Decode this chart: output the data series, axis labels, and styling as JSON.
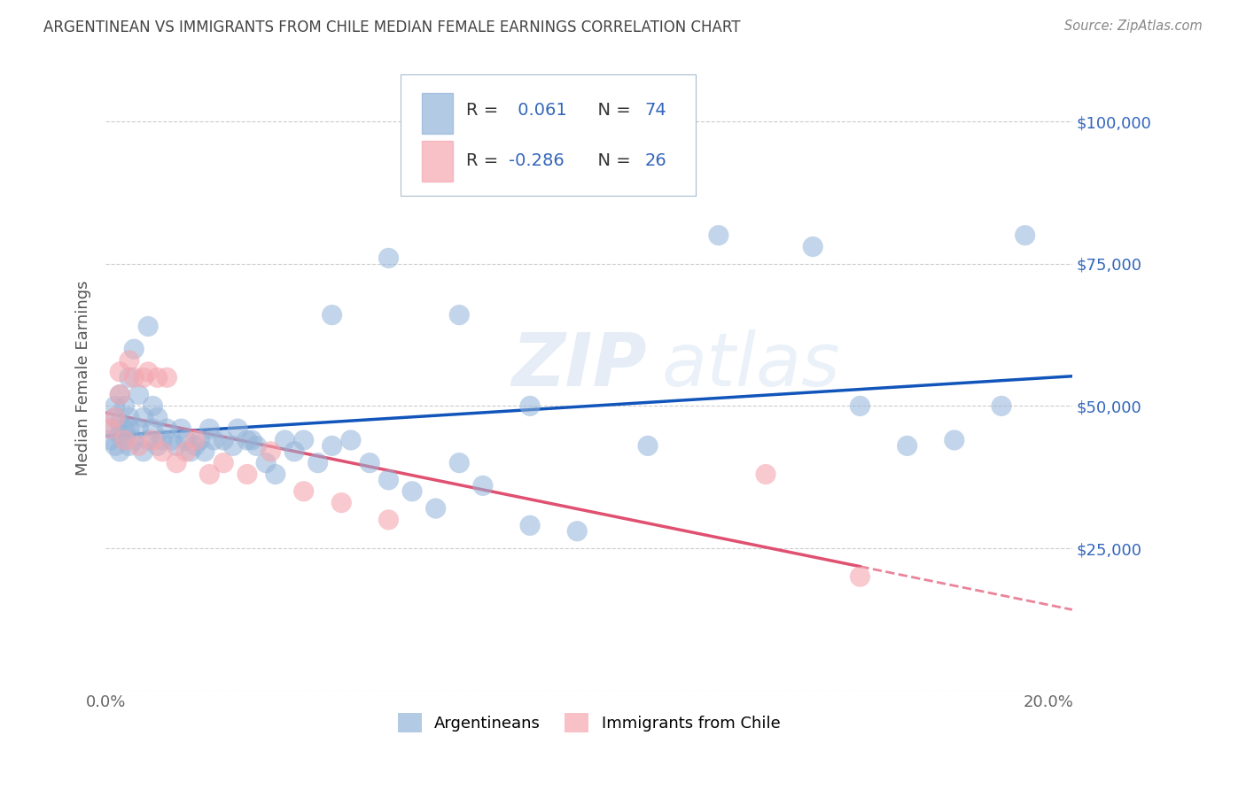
{
  "title": "ARGENTINEAN VS IMMIGRANTS FROM CHILE MEDIAN FEMALE EARNINGS CORRELATION CHART",
  "source": "Source: ZipAtlas.com",
  "ylabel": "Median Female Earnings",
  "watermark_zip": "ZIP",
  "watermark_atlas": "atlas",
  "xlim": [
    0.0,
    0.205
  ],
  "ylim": [
    0,
    110000
  ],
  "yticks": [
    0,
    25000,
    50000,
    75000,
    100000
  ],
  "ytick_labels": [
    "",
    "$25,000",
    "$50,000",
    "$75,000",
    "$100,000"
  ],
  "xticks": [
    0.0,
    0.05,
    0.1,
    0.15,
    0.2
  ],
  "xtick_labels": [
    "0.0%",
    "",
    "",
    "",
    "20.0%"
  ],
  "legend_blue_r": "0.061",
  "legend_blue_n": "74",
  "legend_pink_r": "-0.286",
  "legend_pink_n": "26",
  "legend_label_blue": "Argentineans",
  "legend_label_pink": "Immigrants from Chile",
  "blue_color": "#92B4D9",
  "pink_color": "#F4A7B0",
  "line_blue": "#1155BB",
  "line_pink": "#E05070",
  "background_color": "#FFFFFF",
  "grid_color": "#CCCCCC",
  "title_color": "#444444",
  "right_label_color": "#3366BB",
  "text_black": "#333333",
  "argentineans_x": [
    0.001,
    0.001,
    0.002,
    0.002,
    0.002,
    0.003,
    0.003,
    0.003,
    0.003,
    0.004,
    0.004,
    0.004,
    0.005,
    0.005,
    0.005,
    0.005,
    0.006,
    0.006,
    0.007,
    0.007,
    0.008,
    0.008,
    0.009,
    0.009,
    0.01,
    0.01,
    0.011,
    0.011,
    0.012,
    0.013,
    0.014,
    0.015,
    0.016,
    0.017,
    0.018,
    0.019,
    0.02,
    0.021,
    0.022,
    0.023,
    0.025,
    0.027,
    0.028,
    0.03,
    0.031,
    0.032,
    0.034,
    0.036,
    0.038,
    0.04,
    0.042,
    0.045,
    0.048,
    0.052,
    0.056,
    0.06,
    0.065,
    0.07,
    0.075,
    0.08,
    0.09,
    0.1,
    0.115,
    0.13,
    0.15,
    0.16,
    0.17,
    0.18,
    0.19,
    0.195,
    0.048,
    0.06,
    0.075,
    0.09
  ],
  "argentineans_y": [
    44000,
    46000,
    48000,
    43000,
    50000,
    52000,
    47000,
    45000,
    42000,
    46000,
    50000,
    44000,
    55000,
    48000,
    43000,
    46000,
    60000,
    44000,
    52000,
    46000,
    48000,
    42000,
    64000,
    44000,
    46000,
    50000,
    43000,
    48000,
    44000,
    46000,
    44000,
    43000,
    46000,
    44000,
    42000,
    43000,
    44000,
    42000,
    46000,
    44000,
    44000,
    43000,
    46000,
    44000,
    44000,
    43000,
    40000,
    38000,
    44000,
    42000,
    44000,
    40000,
    43000,
    44000,
    40000,
    37000,
    35000,
    32000,
    40000,
    36000,
    29000,
    28000,
    43000,
    80000,
    78000,
    50000,
    43000,
    44000,
    50000,
    80000,
    66000,
    76000,
    66000,
    50000
  ],
  "immigrants_x": [
    0.001,
    0.002,
    0.003,
    0.003,
    0.004,
    0.005,
    0.006,
    0.007,
    0.008,
    0.009,
    0.01,
    0.011,
    0.012,
    0.013,
    0.015,
    0.017,
    0.019,
    0.022,
    0.025,
    0.03,
    0.035,
    0.042,
    0.05,
    0.06,
    0.14,
    0.16
  ],
  "immigrants_y": [
    46000,
    48000,
    52000,
    56000,
    44000,
    58000,
    55000,
    43000,
    55000,
    56000,
    44000,
    55000,
    42000,
    55000,
    40000,
    42000,
    44000,
    38000,
    40000,
    38000,
    42000,
    35000,
    33000,
    30000,
    38000,
    20000
  ]
}
